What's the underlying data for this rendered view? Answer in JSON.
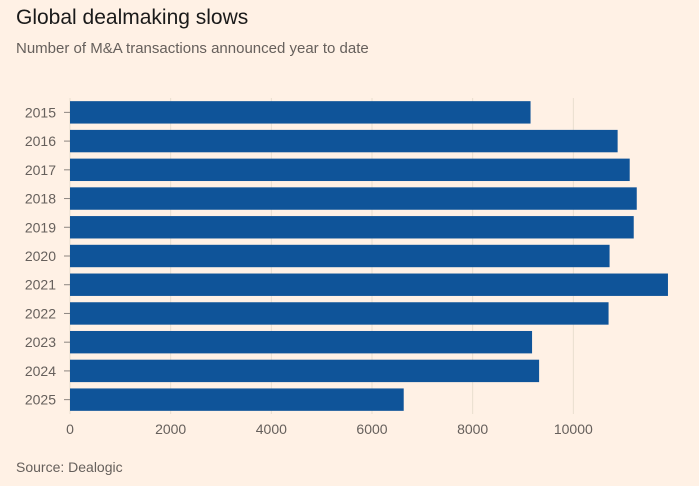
{
  "header": {
    "title": "Global dealmaking slows",
    "subtitle": "Number of M&A transactions announced year to date"
  },
  "footer": {
    "source": "Source: Dealogic"
  },
  "colors": {
    "bar": "#0f5499",
    "background": "#fff1e5",
    "gridline": "#e9decf",
    "text": "#66605c"
  },
  "chart_data": {
    "type": "bar",
    "orientation": "horizontal",
    "title": "Global dealmaking slows",
    "subtitle": "Number of M&A transactions announced year to date",
    "xlabel": "",
    "ylabel": "",
    "categories": [
      "2015",
      "2016",
      "2017",
      "2018",
      "2019",
      "2020",
      "2021",
      "2022",
      "2023",
      "2024",
      "2025"
    ],
    "values": [
      9150,
      10880,
      11120,
      11260,
      11200,
      10720,
      11880,
      10700,
      9180,
      9320,
      6630
    ],
    "xlim": [
      0,
      12000
    ],
    "xticks": [
      0,
      2000,
      4000,
      6000,
      8000,
      10000
    ],
    "grid": true
  }
}
